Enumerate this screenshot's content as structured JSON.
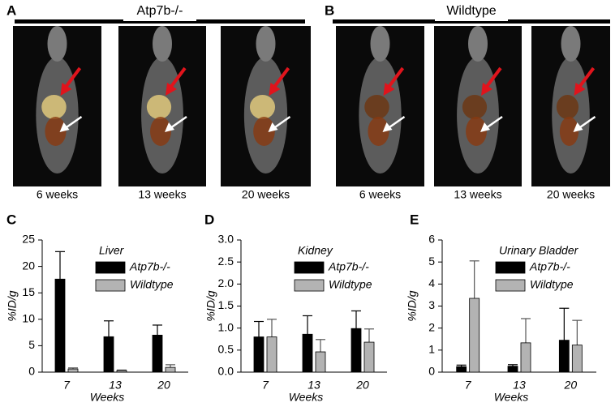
{
  "panels": [
    {
      "label": "A",
      "title": "Atp7b-/-",
      "captions": [
        "6 weeks",
        "13 weeks",
        "20 weeks"
      ]
    },
    {
      "label": "B",
      "title": "Wildtype",
      "captions": [
        "6 weeks",
        "13 weeks",
        "20 weeks"
      ]
    }
  ],
  "chart_data": [
    {
      "type": "bar",
      "panel_label": "C",
      "annotation": "Liver",
      "x_label": "Weeks",
      "y_label": "%ID/g",
      "categories": [
        "7",
        "13",
        "20"
      ],
      "ylim": [
        0,
        25
      ],
      "yticks": [
        0,
        5,
        10,
        15,
        20,
        25
      ],
      "series": [
        {
          "name": "Atp7b-/-",
          "color": "#000000",
          "values": [
            17.6,
            6.7,
            7.0
          ],
          "errors": [
            5.2,
            3.0,
            1.9
          ]
        },
        {
          "name": "Wildtype",
          "color": "#b3b3b3",
          "values": [
            0.6,
            0.3,
            0.9
          ],
          "errors": [
            0.2,
            0.1,
            0.5
          ]
        }
      ]
    },
    {
      "type": "bar",
      "panel_label": "D",
      "annotation": "Kidney",
      "x_label": "Weeks",
      "y_label": "%ID/g",
      "categories": [
        "7",
        "13",
        "20"
      ],
      "ylim": [
        0,
        3
      ],
      "yticks": [
        {
          "value": 0,
          "label": "0.0"
        },
        {
          "value": 0.5,
          "label": "0.5"
        },
        {
          "value": 1,
          "label": "1.0"
        },
        {
          "value": 1.5,
          "label": "1.5"
        },
        {
          "value": 2,
          "label": "2.0"
        },
        {
          "value": 2.5,
          "label": "2.5"
        },
        {
          "value": 3,
          "label": "3.0"
        }
      ],
      "series": [
        {
          "name": "Atp7b-/-",
          "color": "#000000",
          "values": [
            0.8,
            0.86,
            0.99
          ],
          "errors": [
            0.35,
            0.42,
            0.4
          ]
        },
        {
          "name": "Wildtype",
          "color": "#b3b3b3",
          "values": [
            0.8,
            0.46,
            0.68
          ],
          "errors": [
            0.4,
            0.28,
            0.3
          ]
        }
      ]
    },
    {
      "type": "bar",
      "panel_label": "E",
      "annotation": "Urinary Bladder",
      "x_label": "Weeks",
      "y_label": "%ID/g",
      "categories": [
        "7",
        "13",
        "20"
      ],
      "ylim": [
        0,
        6
      ],
      "yticks": [
        0,
        1,
        2,
        3,
        4,
        5,
        6
      ],
      "series": [
        {
          "name": "Atp7b-/-",
          "color": "#000000",
          "values": [
            0.25,
            0.27,
            1.45
          ],
          "errors": [
            0.07,
            0.07,
            1.45
          ]
        },
        {
          "name": "Wildtype",
          "color": "#b3b3b3",
          "values": [
            3.35,
            1.33,
            1.23
          ],
          "errors": [
            1.7,
            1.1,
            1.12
          ]
        }
      ]
    }
  ]
}
